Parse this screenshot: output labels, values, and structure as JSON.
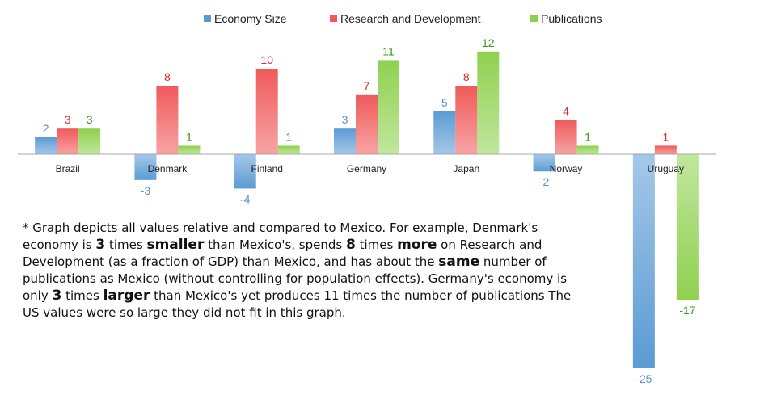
{
  "chart_data": {
    "type": "bar",
    "categories": [
      "Brazil",
      "Denmark",
      "Finland",
      "Germany",
      "Japan",
      "Norway",
      "Uruguay"
    ],
    "series": [
      {
        "name": "Economy Size",
        "values": [
          2,
          -3,
          -4,
          3,
          5,
          -2,
          -25
        ],
        "color": "#5b9bd5"
      },
      {
        "name": "Research and Development",
        "values": [
          3,
          8,
          10,
          7,
          8,
          4,
          1
        ],
        "color": "#f05a5a"
      },
      {
        "name": "Publications",
        "values": [
          3,
          1,
          1,
          11,
          12,
          1,
          -17
        ],
        "color": "#8fd14f"
      }
    ],
    "label_colors": [
      "#5b8fd1",
      "#e02a2a",
      "#3a9a1a"
    ],
    "legend_position": "top",
    "grid": false,
    "ylim": [
      -25,
      12
    ]
  },
  "note": {
    "p1": "* Graph depicts all values relative and compared to Mexico. For example, Denmark's economy is ",
    "n1": "3",
    "p2": " times ",
    "w1": "smaller",
    "p3": " than Mexico's, spends ",
    "n2": "8",
    "p4": " times ",
    "w2": "more",
    "p5": " on Research and Development (as a fraction of GDP) than Mexico, and has about the ",
    "w3": "same",
    "p6": " number of publications as Mexico (without controlling for population effects). Germany's economy is only ",
    "n3": "3",
    "p7": " times ",
    "w4": "larger",
    "p8": " than Mexico's yet produces 11 times the number of publications The US values were so large they did not fit in this graph."
  }
}
